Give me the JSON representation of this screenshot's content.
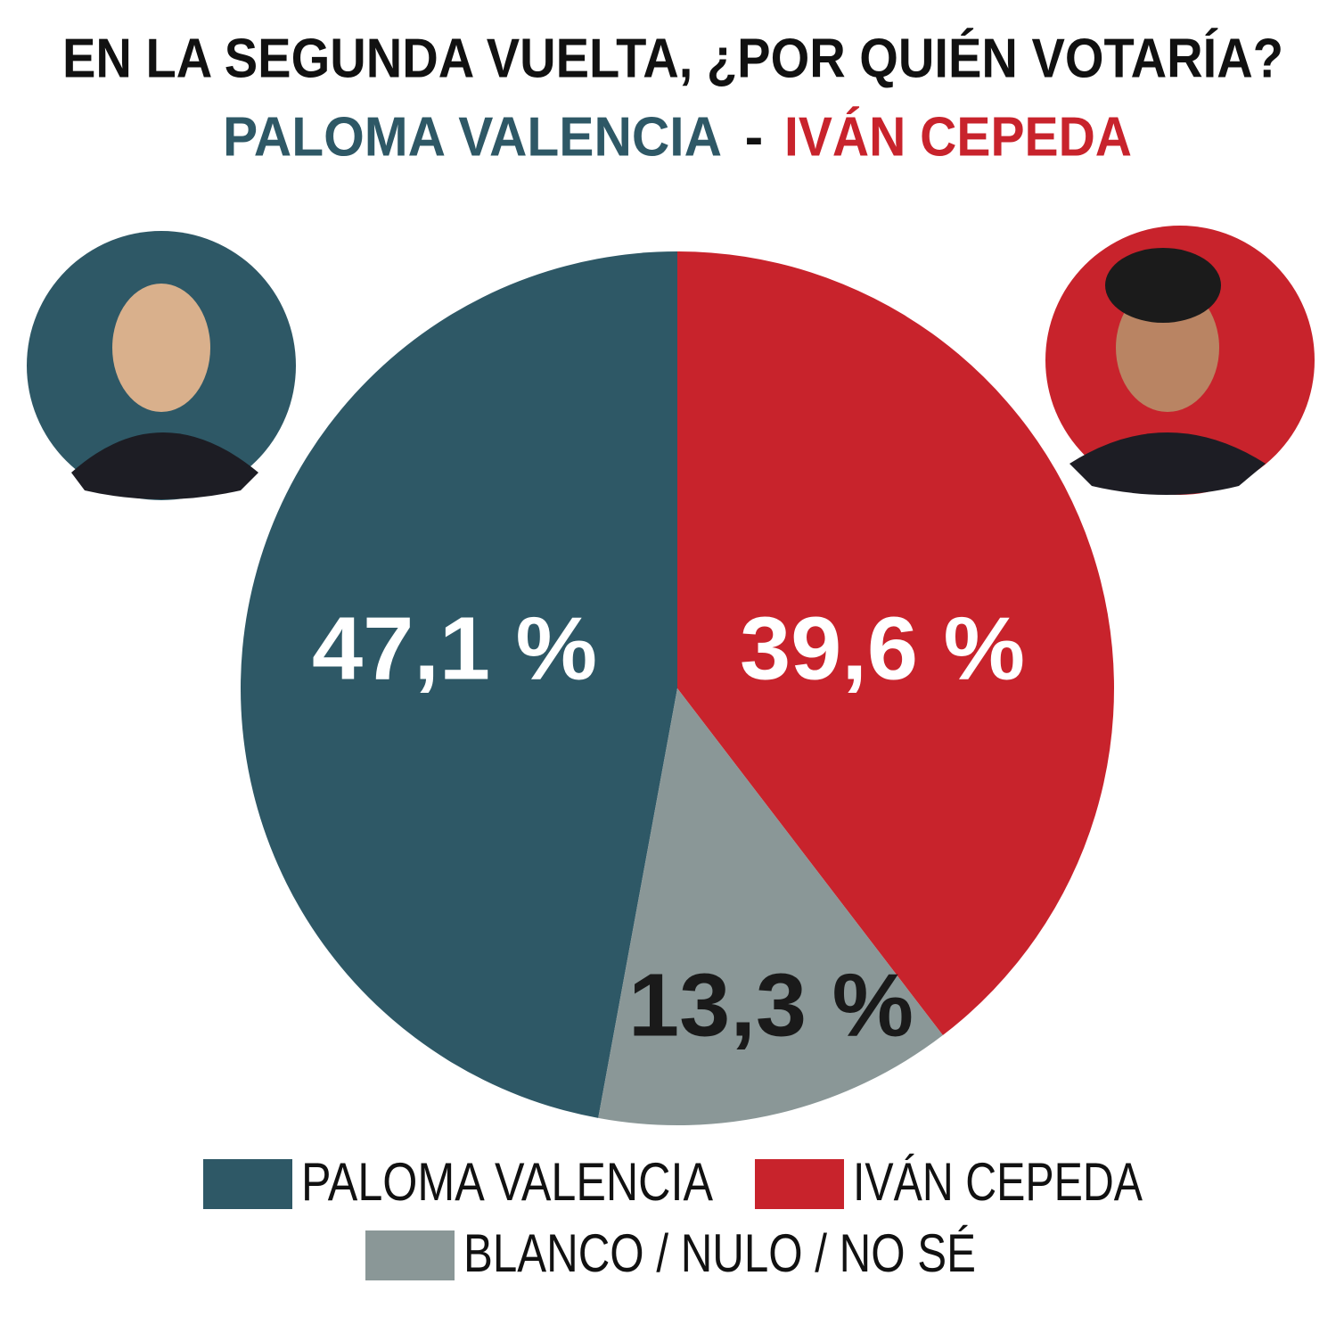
{
  "chart_data": {
    "type": "pie",
    "title": "EN LA SEGUNDA VUELTA, ¿POR QUIÉN VOTARÍA?",
    "subtitle": {
      "left": "PALOMA VALENCIA",
      "separator": "-",
      "right": "IVÁN CEPEDA"
    },
    "categories": [
      "PALOMA VALENCIA",
      "IVÁN CEPEDA",
      "BLANCO / NULO / NO SÉ"
    ],
    "values": [
      47.1,
      39.6,
      13.3
    ],
    "value_labels": [
      "47,1 %",
      "39,6 %",
      "13,3 %"
    ],
    "colors": [
      "#2e5866",
      "#c8232c",
      "#8a9797"
    ]
  }
}
